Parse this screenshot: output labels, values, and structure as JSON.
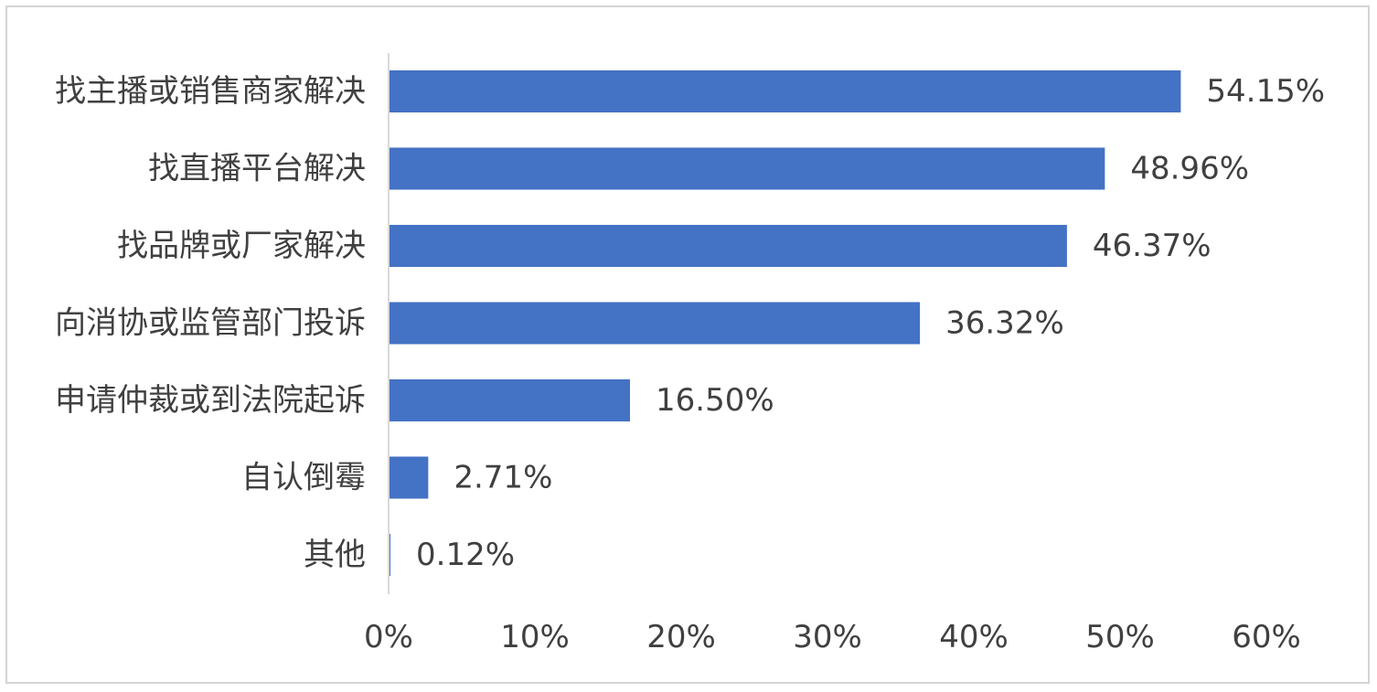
{
  "chart_data": {
    "type": "bar",
    "orientation": "horizontal",
    "categories": [
      "找主播或销售商家解决",
      "找直播平台解决",
      "找品牌或厂家解决",
      "向消协或监管部门投诉",
      "申请仲裁或到法院起诉",
      "自认倒霉",
      "其他"
    ],
    "values": [
      54.15,
      48.96,
      46.37,
      36.32,
      16.5,
      2.71,
      0.12
    ],
    "value_labels": [
      "54.15%",
      "48.96%",
      "46.37%",
      "36.32%",
      "16.50%",
      "2.71%",
      "0.12%"
    ],
    "xlim": [
      0,
      60
    ],
    "xticks": [
      0,
      10,
      20,
      30,
      40,
      50,
      60
    ],
    "xtick_labels": [
      "0%",
      "10%",
      "20%",
      "30%",
      "40%",
      "50%",
      "60%"
    ],
    "bar_color": "#4472c4",
    "axis_color": "#d9d9d9",
    "grid": false,
    "legend": "none"
  }
}
